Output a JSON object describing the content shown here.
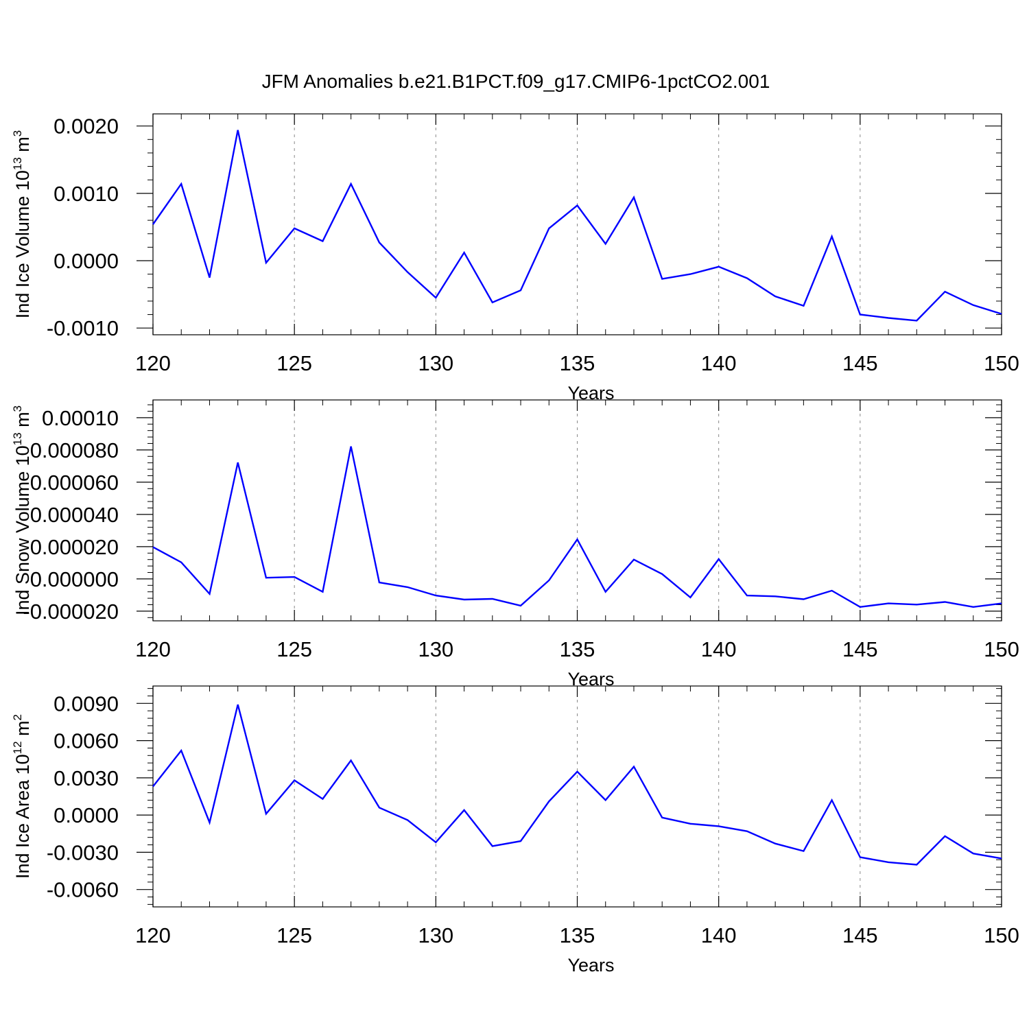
{
  "title": "JFM Anomalies b.e21.B1PCT.f09_g17.CMIP6-1pctCO2.001",
  "colors": {
    "line": "#0000ff",
    "axis": "#000000",
    "grid": "#888888"
  },
  "chart_data": [
    {
      "type": "line",
      "ylabel": "Ind Ice Volume 10",
      "ylabel_exp": "13",
      "ylabel_unit": " m",
      "ylabel_unit_exp": "3",
      "xlabel": "Years",
      "xlim": [
        120,
        150
      ],
      "ylim": [
        -0.0011,
        0.00218
      ],
      "xticks": [
        120,
        125,
        130,
        135,
        140,
        145,
        150
      ],
      "xtick_labels": [
        "120",
        "125",
        "130",
        "135",
        "140",
        "145",
        "150"
      ],
      "yticks": [
        -0.001,
        0.0,
        0.001,
        0.002
      ],
      "ytick_labels": [
        "-0.0010",
        "0.0000",
        "0.0010",
        "0.0020"
      ],
      "x": [
        120,
        121,
        122,
        123,
        124,
        125,
        126,
        127,
        128,
        129,
        130,
        131,
        132,
        133,
        134,
        135,
        136,
        137,
        138,
        139,
        140,
        141,
        142,
        143,
        144,
        145,
        146,
        147,
        148,
        149,
        150
      ],
      "values": [
        0.00054,
        0.00114,
        -0.00025,
        0.00194,
        -3e-05,
        0.00048,
        0.00029,
        0.00114,
        0.00027,
        -0.00017,
        -0.00055,
        0.00012,
        -0.00062,
        -0.00044,
        0.00048,
        0.00082,
        0.00025,
        0.00094,
        -0.00027,
        -0.0002,
        -9e-05,
        -0.00026,
        -0.00053,
        -0.00067,
        0.00036,
        -0.0008,
        -0.00085,
        -0.00089,
        -0.00046,
        -0.00066,
        -0.00079
      ]
    },
    {
      "type": "line",
      "ylabel": "Ind Snow Volume 10",
      "ylabel_exp": "13",
      "ylabel_unit": " m",
      "ylabel_unit_exp": "3",
      "xlabel": "Years",
      "xlim": [
        120,
        150
      ],
      "ylim": [
        -2.6e-05,
        0.000111
      ],
      "xticks": [
        120,
        125,
        130,
        135,
        140,
        145,
        150
      ],
      "xtick_labels": [
        "120",
        "125",
        "130",
        "135",
        "140",
        "145",
        "150"
      ],
      "yticks": [
        -2e-05,
        0.0,
        2e-05,
        4e-05,
        6e-05,
        8e-05,
        0.0001
      ],
      "ytick_labels": [
        "-0.000020",
        "0.000000",
        "0.000020",
        "0.000040",
        "0.000060",
        "0.000080",
        "0.00010"
      ],
      "x": [
        120,
        121,
        122,
        123,
        124,
        125,
        126,
        127,
        128,
        129,
        130,
        131,
        132,
        133,
        134,
        135,
        136,
        137,
        138,
        139,
        140,
        141,
        142,
        143,
        144,
        145,
        146,
        147,
        148,
        149,
        150
      ],
      "values": [
        1.98e-05,
        1.03e-05,
        -9.3e-06,
        7.22e-05,
        7e-07,
        1.2e-06,
        -8e-06,
        8.22e-05,
        -2.2e-06,
        -5.1e-06,
        -1.03e-05,
        -1.28e-05,
        -1.24e-05,
        -1.66e-05,
        -9e-07,
        2.45e-05,
        -8e-06,
        1.2e-05,
        3e-06,
        -1.15e-05,
        1.23e-05,
        -1.03e-05,
        -1.08e-05,
        -1.26e-05,
        -7.3e-06,
        -1.74e-05,
        -1.52e-05,
        -1.59e-05,
        -1.43e-05,
        -1.74e-05,
        -1.52e-05
      ]
    },
    {
      "type": "line",
      "ylabel": "Ind Ice Area 10",
      "ylabel_exp": "12",
      "ylabel_unit": " m",
      "ylabel_unit_exp": "2",
      "xlabel": "Years",
      "xlim": [
        120,
        150
      ],
      "ylim": [
        -0.0074,
        0.0104
      ],
      "xticks": [
        120,
        125,
        130,
        135,
        140,
        145,
        150
      ],
      "xtick_labels": [
        "120",
        "125",
        "130",
        "135",
        "140",
        "145",
        "150"
      ],
      "yticks": [
        -0.006,
        -0.003,
        0.0,
        0.003,
        0.006,
        0.009
      ],
      "ytick_labels": [
        "-0.0060",
        "-0.0030",
        "0.0000",
        "0.0030",
        "0.0060",
        "0.0090"
      ],
      "x": [
        120,
        121,
        122,
        123,
        124,
        125,
        126,
        127,
        128,
        129,
        130,
        131,
        132,
        133,
        134,
        135,
        136,
        137,
        138,
        139,
        140,
        141,
        142,
        143,
        144,
        145,
        146,
        147,
        148,
        149,
        150
      ],
      "values": [
        0.0023,
        0.0052,
        -0.0006,
        0.0089,
        0.0001,
        0.0028,
        0.0013,
        0.0044,
        0.0006,
        -0.0004,
        -0.0022,
        0.0004,
        -0.0025,
        -0.0021,
        0.0011,
        0.0035,
        0.0012,
        0.0039,
        -0.0002,
        -0.0007,
        -0.0009,
        -0.0013,
        -0.0023,
        -0.0029,
        0.0012,
        -0.0034,
        -0.0038,
        -0.004,
        -0.0017,
        -0.0031,
        -0.0035
      ]
    }
  ]
}
